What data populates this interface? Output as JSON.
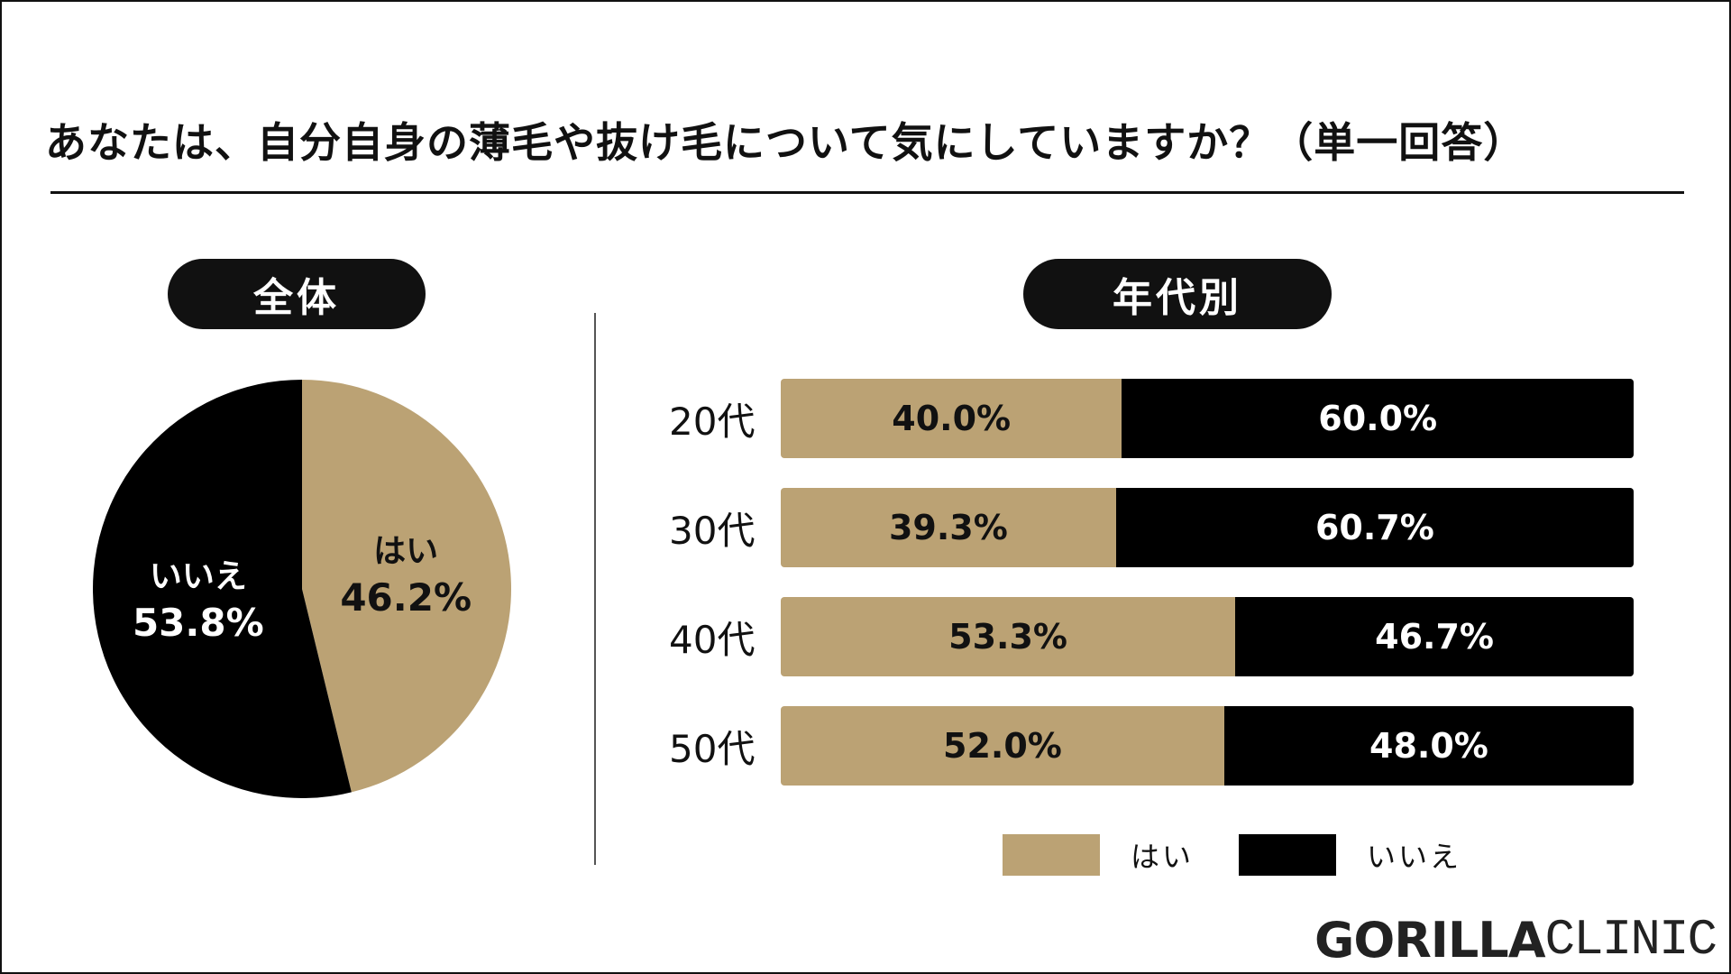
{
  "title": "あなたは、自分自身の薄毛や抜け毛について気にしていますか？（単一回答）",
  "overall_label": "全体",
  "by_age_label": "年代別",
  "logo": {
    "bold": "GORILLA",
    "light": "CLINIC"
  },
  "colors": {
    "yes": "#bba274",
    "no": "#000000",
    "text": "#111111"
  },
  "chart_data": [
    {
      "type": "pie",
      "title": "全体",
      "slices": [
        {
          "label": "はい",
          "value": 46.2,
          "value_label": "46.2%",
          "color": "#bba274"
        },
        {
          "label": "いいえ",
          "value": 53.8,
          "value_label": "53.8%",
          "color": "#000000"
        }
      ],
      "start": "12 o'clock",
      "direction": "clockwise"
    },
    {
      "type": "bar",
      "orientation": "horizontal",
      "stacked": true,
      "normalized": true,
      "title": "年代別",
      "categories": [
        "20代",
        "30代",
        "40代",
        "50代"
      ],
      "series": [
        {
          "name": "はい",
          "color": "#bba274",
          "values": [
            40.0,
            39.3,
            53.3,
            52.0
          ],
          "labels": [
            "40.0%",
            "39.3%",
            "53.3%",
            "52.0%"
          ]
        },
        {
          "name": "いいえ",
          "color": "#000000",
          "values": [
            60.0,
            60.7,
            46.7,
            48.0
          ],
          "labels": [
            "60.0%",
            "60.7%",
            "46.7%",
            "48.0%"
          ]
        }
      ],
      "legend": {
        "position": "bottom",
        "entries": [
          "はい",
          "いいえ"
        ]
      }
    }
  ]
}
